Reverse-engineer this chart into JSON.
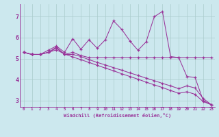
{
  "xlabel": "Windchill (Refroidissement éolien,°C)",
  "bg_color": "#cce8ee",
  "grid_color": "#aacccc",
  "line_color": "#993399",
  "xlim": [
    -0.5,
    23.4
  ],
  "ylim": [
    2.7,
    7.6
  ],
  "xticks": [
    0,
    1,
    2,
    3,
    4,
    5,
    6,
    7,
    8,
    9,
    10,
    11,
    12,
    13,
    14,
    15,
    16,
    17,
    18,
    19,
    20,
    21,
    22,
    23
  ],
  "yticks": [
    3,
    4,
    5,
    6,
    7
  ],
  "series": [
    [
      5.3,
      5.2,
      5.2,
      5.3,
      5.55,
      5.2,
      5.3,
      5.15,
      5.05,
      5.05,
      5.05,
      5.05,
      5.05,
      5.05,
      5.05,
      5.05,
      5.05,
      5.05,
      5.05,
      5.05,
      5.05,
      5.05,
      5.05,
      5.05
    ],
    [
      5.3,
      5.2,
      5.2,
      5.4,
      5.6,
      5.3,
      5.95,
      5.45,
      5.9,
      5.5,
      5.9,
      6.8,
      6.4,
      5.85,
      5.4,
      5.8,
      7.0,
      7.25,
      5.1,
      5.05,
      4.15,
      4.1,
      3.0,
      2.8
    ],
    [
      5.3,
      5.2,
      5.2,
      5.3,
      5.5,
      5.2,
      5.2,
      5.1,
      4.95,
      4.82,
      4.7,
      4.57,
      4.45,
      4.32,
      4.2,
      4.07,
      3.95,
      3.82,
      3.7,
      3.57,
      3.7,
      3.6,
      3.1,
      2.8
    ],
    [
      5.3,
      5.2,
      5.2,
      5.3,
      5.42,
      5.22,
      5.08,
      4.95,
      4.82,
      4.68,
      4.55,
      4.42,
      4.28,
      4.15,
      4.02,
      3.88,
      3.75,
      3.62,
      3.48,
      3.35,
      3.42,
      3.3,
      2.95,
      2.8
    ]
  ]
}
